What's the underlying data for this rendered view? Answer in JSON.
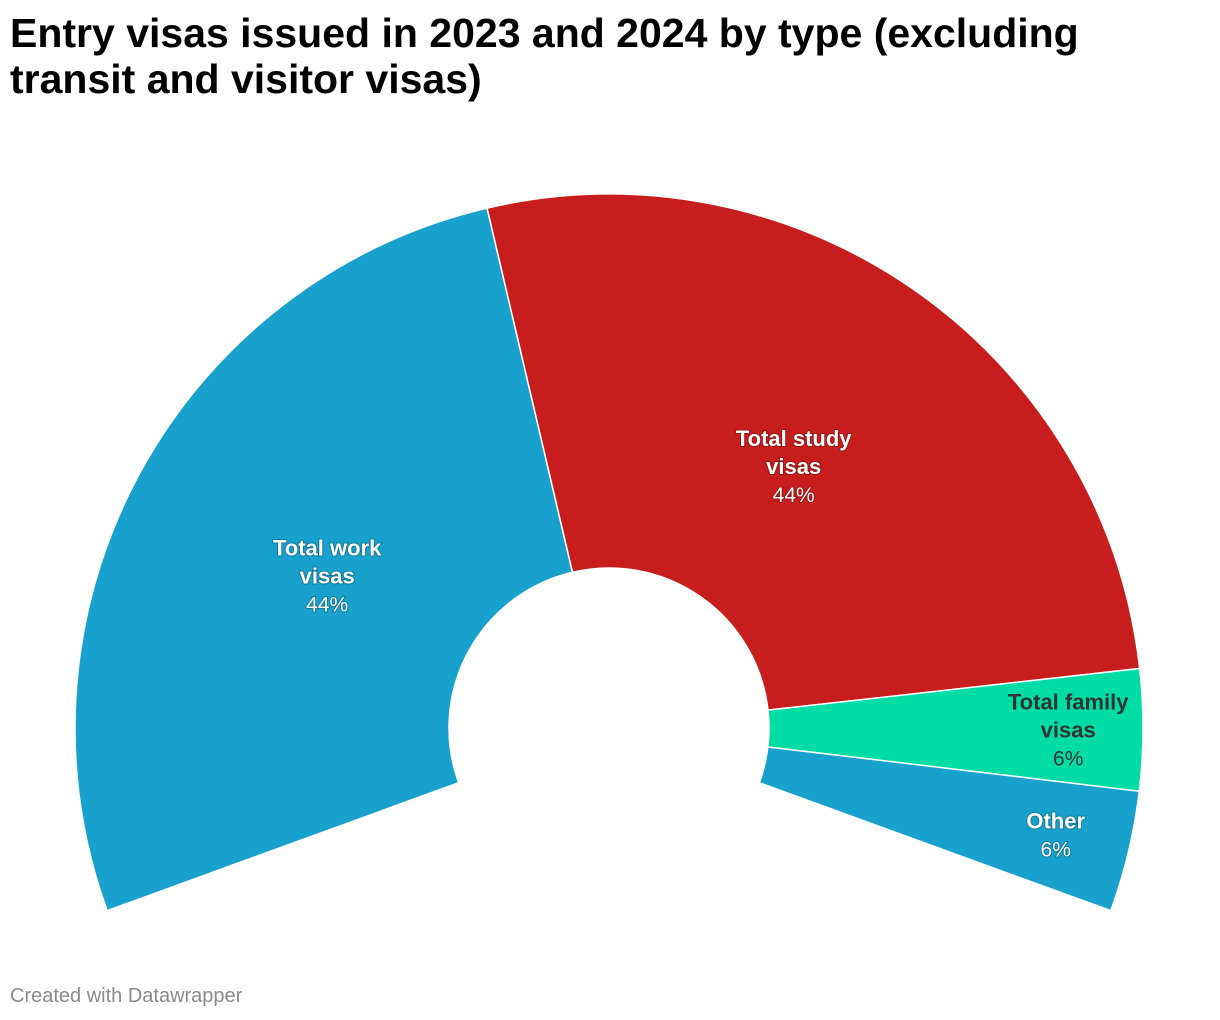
{
  "title": "Entry visas issued in 2023 and 2024 by type (excluding transit and visitor visas)",
  "footer": "Created with Datawrapper",
  "chart_data": {
    "type": "pie",
    "variant": "semi-donut",
    "title": "Entry visas issued in 2023 and 2024 by type (excluding transit and visitor visas)",
    "legend": "none (direct labels on slices)",
    "slices": [
      {
        "label_lines": [
          "Total work",
          "visas"
        ],
        "value": 44,
        "value_label": "44%",
        "color": "#18a1cd",
        "label_color": "#ffffff"
      },
      {
        "label_lines": [
          "Total study",
          "visas"
        ],
        "value": 44,
        "value_label": "44%",
        "color": "#c71e1d",
        "label_color": "#ffffff"
      },
      {
        "label_lines": [
          "Total family",
          "visas"
        ],
        "value": 6,
        "value_label": "6%",
        "color": "#00dca6",
        "label_color": "#333333"
      },
      {
        "label_lines": [
          "Other"
        ],
        "value": 6,
        "value_label": "6%",
        "color": "#18a1cd",
        "label_color": "#ffffff"
      }
    ]
  }
}
